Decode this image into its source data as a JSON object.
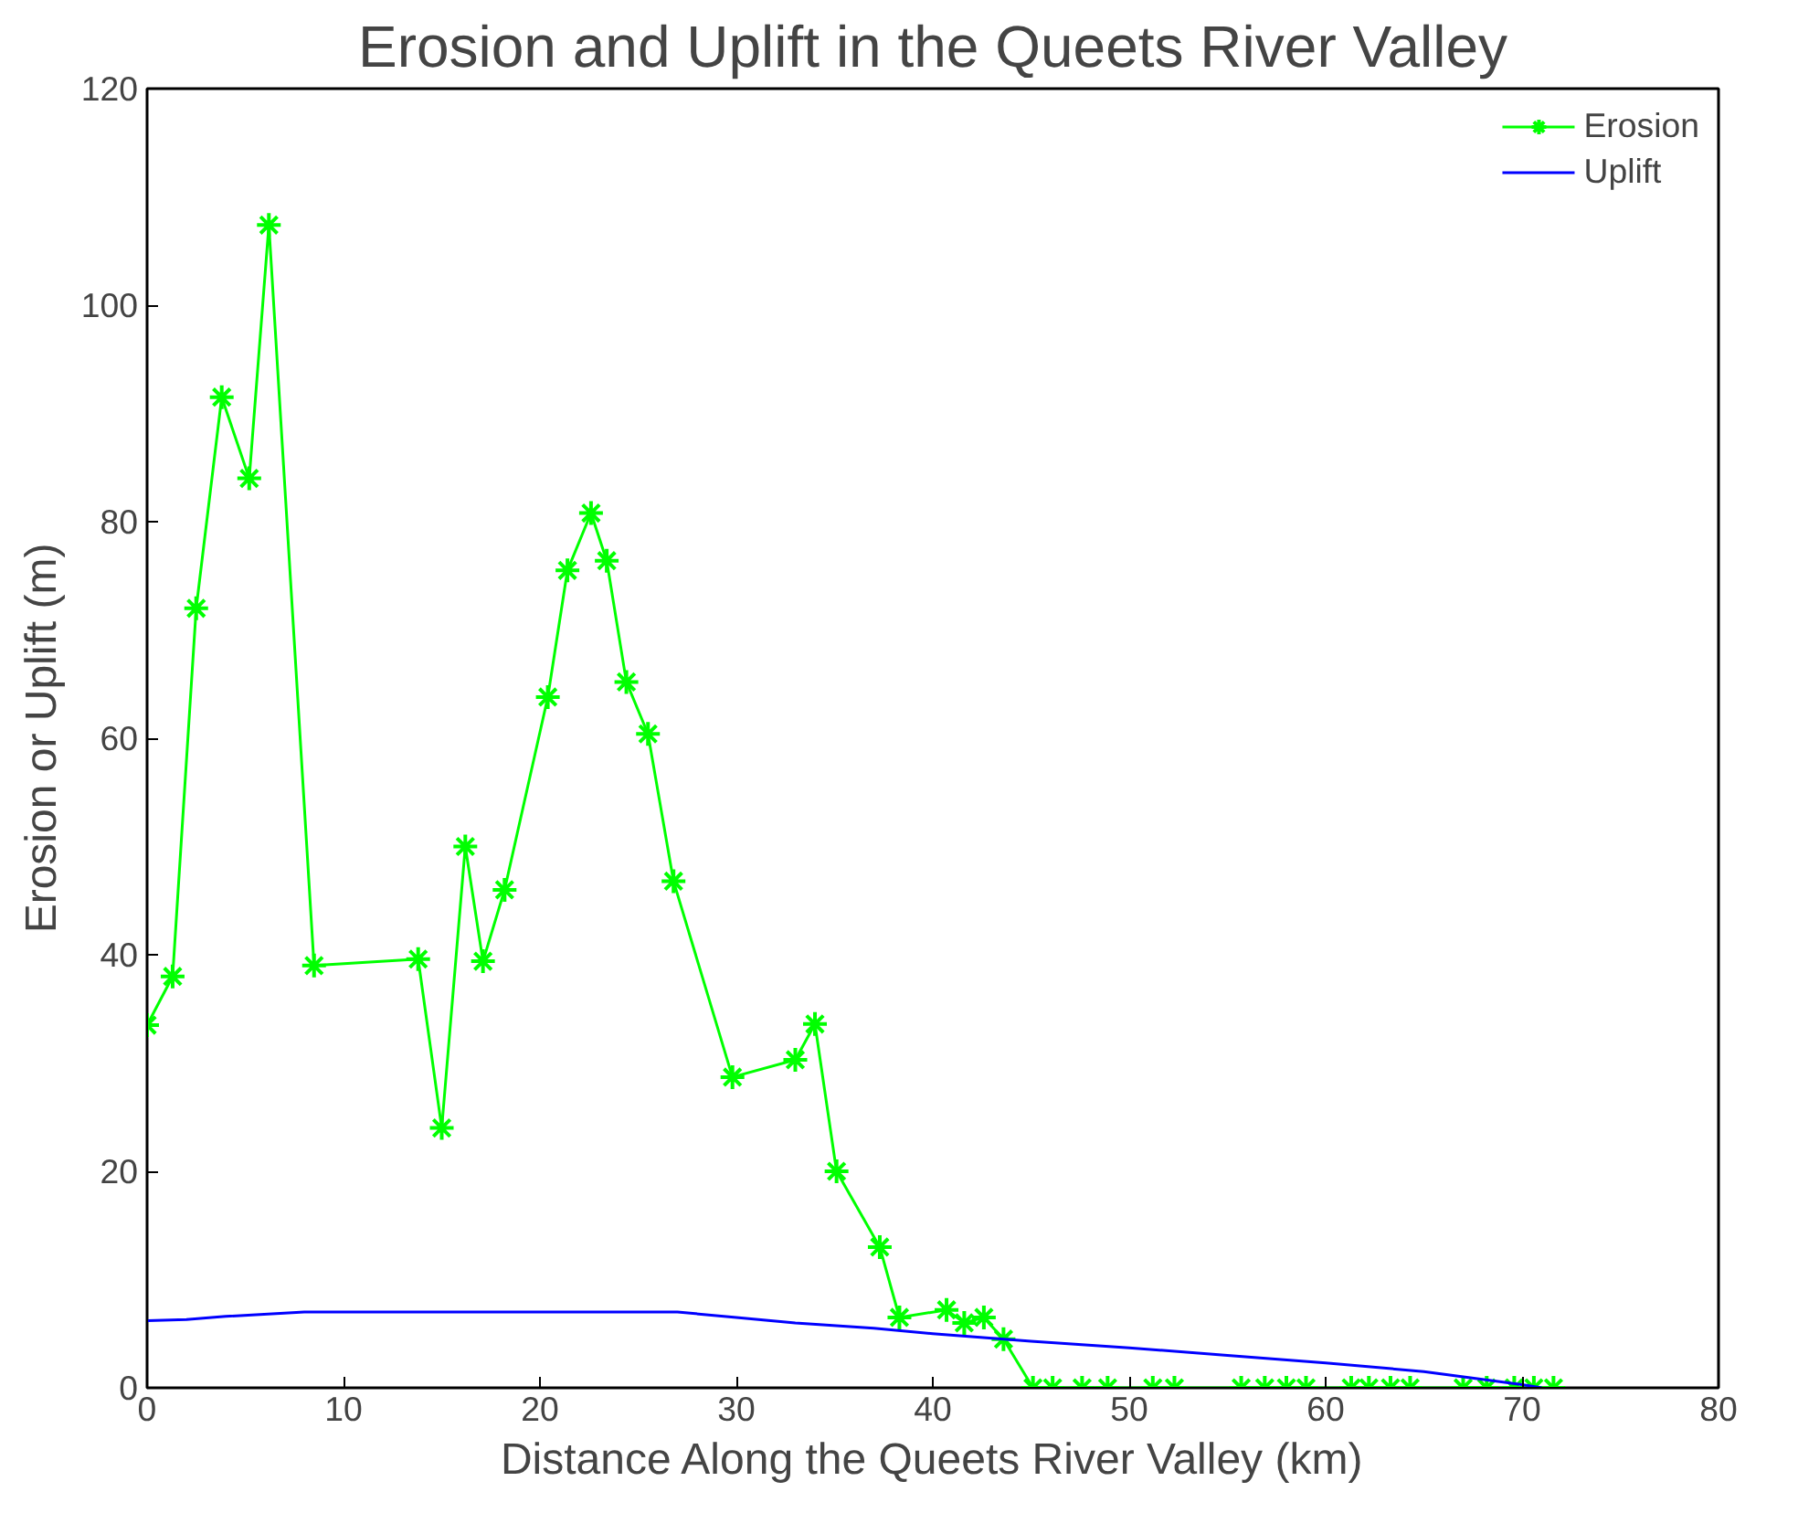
{
  "chart_data": {
    "type": "line",
    "title": "Erosion and Uplift in the Queets River Valley",
    "xlabel": "Distance Along the Queets River Valley (km)",
    "ylabel": "Erosion or Uplift (m)",
    "xlim": [
      0,
      80
    ],
    "ylim": [
      0,
      120
    ],
    "xticks": [
      0,
      10,
      20,
      30,
      40,
      50,
      60,
      70,
      80
    ],
    "yticks": [
      0,
      20,
      40,
      60,
      80,
      100,
      120
    ],
    "grid": false,
    "legend": "top right",
    "series": [
      {
        "name": "Erosion",
        "color": "#00ff00",
        "marker": "cross",
        "x": [
          0,
          1.3,
          2.5,
          3.8,
          5.2,
          6.2,
          8.5,
          13.8,
          15,
          16.2,
          17.1,
          18.2,
          20.4,
          21.4,
          22.6,
          23.4,
          24.4,
          25.5,
          26.8,
          29.8,
          33,
          34,
          35.1,
          37.3,
          38.3,
          40.7,
          41.6,
          42.6,
          43.6,
          45.1,
          46.1,
          47.6,
          48.9,
          51.2,
          52.3,
          55.7,
          56.9,
          58.0,
          59.0,
          61.3,
          62.2,
          63.3,
          64.3,
          67.0,
          68.2,
          69.6,
          70.6,
          71.6
        ],
        "values": [
          33.5,
          38,
          72,
          91.5,
          84,
          107.4,
          39,
          39.6,
          24,
          50,
          39.4,
          46,
          63.8,
          75.5,
          80.8,
          76.4,
          65.2,
          60.4,
          46.8,
          28.7,
          30.3,
          33.6,
          20,
          13,
          6.5,
          7.2,
          6,
          6.5,
          4.5,
          0,
          0,
          0,
          0,
          0,
          0,
          0,
          0,
          0,
          0,
          0,
          0,
          0,
          0,
          0,
          0,
          0,
          0,
          0
        ]
      },
      {
        "name": "Uplift",
        "color": "#0000ff",
        "marker": "none",
        "x": [
          0,
          2,
          4,
          8,
          27,
          30,
          33,
          37,
          40,
          45,
          50,
          55,
          60,
          65,
          70,
          71
        ],
        "values": [
          6.2,
          6.3,
          6.6,
          7,
          7,
          6.5,
          6,
          5.5,
          5,
          4.3,
          3.7,
          3,
          2.3,
          1.5,
          0.3,
          0
        ]
      }
    ]
  }
}
